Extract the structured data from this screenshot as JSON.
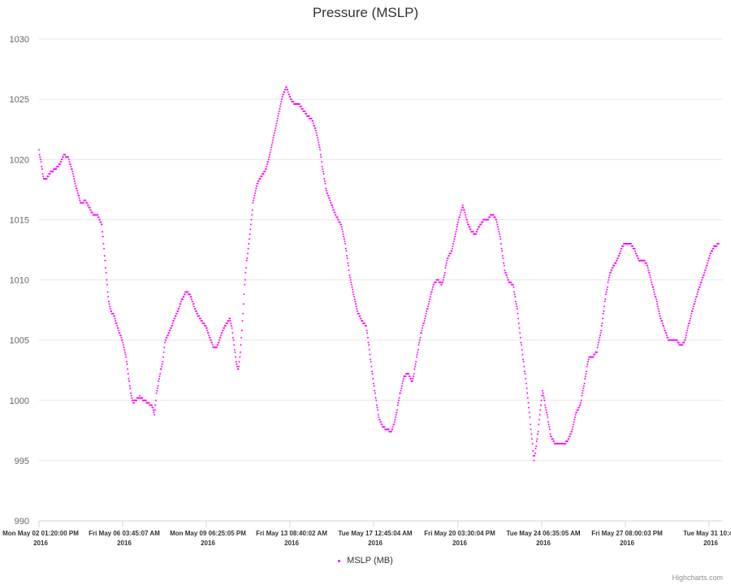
{
  "credits": "Highcharts.com",
  "chart_data": {
    "type": "scatter",
    "title": "Pressure (MSLP)",
    "xlabel": "",
    "ylabel": "",
    "ylim": [
      990,
      1030
    ],
    "ytick_labels": [
      "990",
      "995",
      "1000",
      "1005",
      "1010",
      "1015",
      "1020",
      "1025",
      "1030"
    ],
    "xtick_labels": [
      [
        "Mon May 02 01:20:00 PM",
        "2016"
      ],
      [
        "Fri May 06 03:45:07 AM",
        "2016"
      ],
      [
        "Mon May 09 06:25:05 PM",
        "2016"
      ],
      [
        "Fri May 13 08:40:02 AM",
        "2016"
      ],
      [
        "Tue May 17 12:45:04 AM",
        "2016"
      ],
      [
        "Fri May 20 03:30:04 PM",
        "2016"
      ],
      [
        "Tue May 24 06:35:05 AM",
        "2016"
      ],
      [
        "Fri May 27 08:00:03 PM",
        "2016"
      ],
      [
        "Tue May 31 10:4...",
        "2016"
      ]
    ],
    "grid": true,
    "legend_placement": "bottom-center",
    "series": [
      {
        "name": "MSLP (MB)",
        "color": "#ff00ff",
        "x": [
          0.0,
          0.1,
          0.2,
          0.3,
          0.4,
          0.5,
          0.6,
          0.8,
          1.0,
          1.1,
          1.2,
          1.4,
          1.6,
          1.8,
          2.0,
          2.2,
          2.4,
          2.5,
          2.6,
          2.7,
          2.8,
          3.0,
          3.1,
          3.2,
          3.3,
          3.4,
          3.5,
          3.6,
          3.7,
          3.8,
          3.9,
          4.0,
          4.1,
          4.2,
          4.3,
          4.4,
          4.5,
          4.6,
          4.8,
          5.0,
          5.2,
          5.4,
          5.5,
          5.6,
          5.7,
          5.8,
          5.9,
          6.0,
          6.2,
          6.4,
          6.6,
          6.8,
          7.0,
          7.2,
          7.4,
          7.6,
          7.8,
          8.0,
          8.1,
          8.2,
          8.3,
          8.4,
          8.5,
          8.6,
          8.7,
          8.8,
          9.0,
          9.1,
          9.2,
          9.3,
          9.4,
          9.5,
          9.6,
          9.7,
          9.8,
          9.9,
          10.0,
          10.1,
          10.2,
          10.4,
          10.6,
          10.8,
          11.0,
          11.2,
          11.4,
          11.6,
          11.8,
          12.0,
          12.2,
          12.4,
          12.6,
          12.8,
          13.0,
          13.2,
          13.4,
          13.5,
          13.6,
          13.7,
          13.8,
          13.9,
          14.0,
          14.2,
          14.4,
          14.6,
          14.8,
          15.0,
          15.2,
          15.4,
          15.6,
          15.8,
          16.0,
          16.2,
          16.4,
          16.6,
          16.8,
          17.0,
          17.2,
          17.4,
          17.6,
          17.8,
          18.0,
          18.2,
          18.4,
          18.6,
          18.8,
          19.0,
          19.2,
          19.3,
          19.4,
          19.5,
          19.6,
          19.7,
          19.8,
          20.0,
          20.2,
          20.4,
          20.6,
          20.8,
          21.0,
          21.2,
          21.4,
          21.6,
          21.8,
          22.0,
          22.2,
          22.4,
          22.6,
          22.8,
          23.0,
          23.2,
          23.4,
          23.6,
          23.8,
          24.0,
          24.2,
          24.4,
          24.6,
          24.8,
          25.0,
          25.2,
          25.4,
          25.6,
          25.8,
          26.0,
          26.2,
          26.4,
          26.6,
          26.8,
          27.0,
          27.2,
          27.4,
          27.6,
          27.8,
          28.0,
          28.2,
          28.4,
          28.6,
          28.8,
          29.0,
          29.2,
          29.4,
          29.6,
          29.8,
          30.0,
          30.2,
          30.4,
          30.6,
          30.8,
          31.0,
          31.2,
          31.4,
          31.6,
          31.8,
          32.0,
          32.2,
          32.4
        ],
        "y": [
          1020.7,
          1019.7,
          1018.5,
          1018.4,
          1018.5,
          1018.8,
          1019.0,
          1019.2,
          1019.6,
          1020.0,
          1020.4,
          1020.1,
          1019.0,
          1017.5,
          1016.3,
          1016.6,
          1016.0,
          1015.6,
          1015.4,
          1015.4,
          1015.3,
          1014.5,
          1012.5,
          1010.5,
          1008.5,
          1007.5,
          1007.2,
          1007.0,
          1006.3,
          1005.8,
          1005.3,
          1004.8,
          1004.0,
          1003.0,
          1001.5,
          1000.3,
          999.8,
          1000.0,
          1000.3,
          1000.0,
          999.8,
          999.5,
          998.8,
          1000.5,
          1001.5,
          1002.5,
          1003.2,
          1004.8,
          1005.6,
          1006.5,
          1007.3,
          1008.3,
          1009.0,
          1008.8,
          1007.8,
          1007.0,
          1006.5,
          1006.0,
          1005.4,
          1005.0,
          1004.5,
          1004.3,
          1004.5,
          1005.0,
          1005.5,
          1006.0,
          1006.5,
          1006.8,
          1006.0,
          1004.6,
          1003.3,
          1002.5,
          1004.0,
          1006.5,
          1009.5,
          1011.5,
          1013.0,
          1014.5,
          1016.3,
          1018.0,
          1018.6,
          1019.1,
          1020.3,
          1022.0,
          1023.5,
          1025.2,
          1026.0,
          1025.0,
          1024.6,
          1024.6,
          1024.1,
          1023.6,
          1023.4,
          1022.4,
          1020.8,
          1019.5,
          1018.5,
          1017.4,
          1017.0,
          1016.5,
          1016.0,
          1015.2,
          1014.6,
          1013.0,
          1010.5,
          1008.8,
          1007.3,
          1006.6,
          1006.2,
          1003.5,
          1000.8,
          998.6,
          997.8,
          997.6,
          997.4,
          998.5,
          1000.5,
          1002.0,
          1002.2,
          1001.5,
          1003.5,
          1005.5,
          1006.8,
          1008.2,
          1009.6,
          1010.0,
          1009.6,
          1010.2,
          1011.2,
          1011.9,
          1012.2,
          1012.6,
          1013.5,
          1015.0,
          1016.2,
          1014.9,
          1014.0,
          1013.8,
          1014.5,
          1015.0,
          1015.0,
          1015.5,
          1015.0,
          1013.3,
          1010.8,
          1009.8,
          1009.6,
          1007.5,
          1004.5,
          1001.8,
          998.5,
          995.0,
          997.5,
          1000.8,
          999.0,
          997.0,
          996.4,
          996.4,
          996.4,
          996.6,
          997.5,
          999.0,
          999.6,
          1001.5,
          1003.5,
          1003.6,
          1004.1,
          1005.8,
          1008.5,
          1010.5,
          1011.2,
          1011.8,
          1012.8,
          1013.1,
          1013.0,
          1012.5,
          1011.6,
          1011.7,
          1011.2,
          1009.8,
          1008.5,
          1007.0,
          1006.0,
          1005.0,
          1005.0,
          1005.0,
          1004.5,
          1005.0,
          1006.5,
          1007.8,
          1009.0,
          1010.0,
          1011.0,
          1012.2,
          1012.8,
          1013.0
        ]
      }
    ]
  }
}
